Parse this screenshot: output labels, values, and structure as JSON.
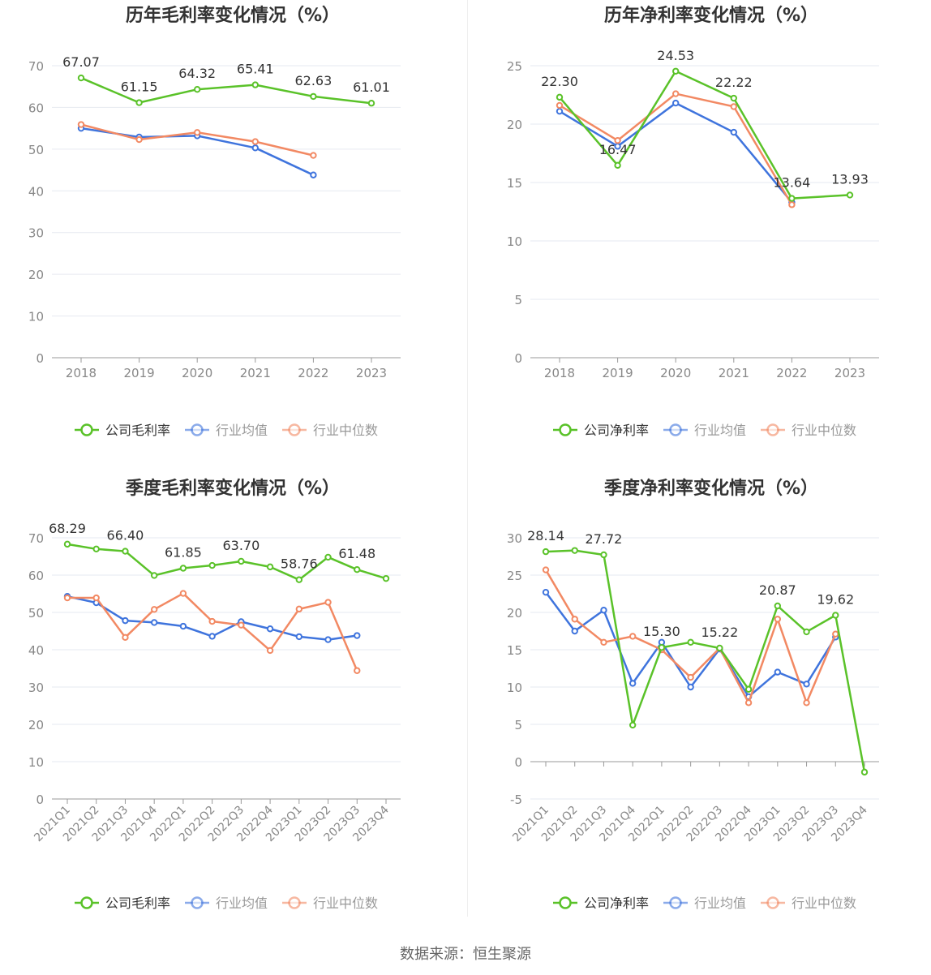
{
  "footer": "数据来源：恒生聚源",
  "colors": {
    "company": "#5ac229",
    "avg": "#3f74dd",
    "median": "#f28963"
  },
  "chart_data": [
    {
      "type": "line",
      "title": "历年毛利率变化情况（%）",
      "categories": [
        "2018",
        "2019",
        "2020",
        "2021",
        "2022",
        "2023"
      ],
      "ylim": [
        0,
        70
      ],
      "yticks": [
        0,
        10,
        20,
        30,
        40,
        50,
        60,
        70
      ],
      "grid": true,
      "legend_position": "bottom",
      "series": [
        {
          "name": "公司毛利率",
          "role": "company",
          "values": [
            67.07,
            61.15,
            64.32,
            65.41,
            62.63,
            61.01
          ],
          "labels": [
            "67.07",
            "61.15",
            "64.32",
            "65.41",
            "62.63",
            "61.01"
          ]
        },
        {
          "name": "行业均值",
          "role": "avg",
          "values": [
            55.0,
            52.9,
            53.2,
            50.3,
            43.8,
            null
          ]
        },
        {
          "name": "行业中位数",
          "role": "median",
          "values": [
            55.9,
            52.3,
            54.0,
            51.8,
            48.5,
            null
          ]
        }
      ]
    },
    {
      "type": "line",
      "title": "历年净利率变化情况（%）",
      "categories": [
        "2018",
        "2019",
        "2020",
        "2021",
        "2022",
        "2023"
      ],
      "ylim": [
        0,
        25
      ],
      "yticks": [
        0,
        5,
        10,
        15,
        20,
        25
      ],
      "grid": true,
      "legend_position": "bottom",
      "series": [
        {
          "name": "公司净利率",
          "role": "company",
          "values": [
            22.3,
            16.47,
            24.53,
            22.22,
            13.64,
            13.93
          ],
          "labels": [
            "22.30",
            "16.47",
            "24.53",
            "22.22",
            "13.64",
            "13.93"
          ]
        },
        {
          "name": "行业均值",
          "role": "avg",
          "values": [
            21.1,
            18.1,
            21.8,
            19.3,
            13.3,
            null
          ]
        },
        {
          "name": "行业中位数",
          "role": "median",
          "values": [
            21.6,
            18.6,
            22.6,
            21.5,
            13.1,
            null
          ]
        }
      ]
    },
    {
      "type": "line",
      "title": "季度毛利率变化情况（%）",
      "categories": [
        "2021Q1",
        "2021Q2",
        "2021Q3",
        "2021Q4",
        "2022Q1",
        "2022Q2",
        "2022Q3",
        "2022Q4",
        "2023Q1",
        "2023Q2",
        "2023Q3",
        "2023Q4"
      ],
      "ylim": [
        0,
        70
      ],
      "yticks": [
        0,
        10,
        20,
        30,
        40,
        50,
        60,
        70
      ],
      "grid": true,
      "legend_position": "bottom",
      "series": [
        {
          "name": "公司毛利率",
          "role": "company",
          "values": [
            68.29,
            67.0,
            66.4,
            59.9,
            61.85,
            62.6,
            63.7,
            62.2,
            58.76,
            64.8,
            61.48,
            59.1
          ],
          "labels": [
            "68.29",
            "",
            "66.40",
            "",
            "61.85",
            "",
            "63.70",
            "",
            "58.76",
            "",
            "61.48",
            ""
          ]
        },
        {
          "name": "行业均值",
          "role": "avg",
          "values": [
            54.3,
            52.6,
            47.8,
            47.3,
            46.3,
            43.6,
            47.5,
            45.6,
            43.5,
            42.7,
            43.8,
            null
          ]
        },
        {
          "name": "行业中位数",
          "role": "median",
          "values": [
            53.9,
            53.9,
            43.3,
            50.8,
            55.1,
            47.6,
            46.6,
            39.8,
            50.9,
            52.7,
            34.4,
            null
          ]
        }
      ]
    },
    {
      "type": "line",
      "title": "季度净利率变化情况（%）",
      "categories": [
        "2021Q1",
        "2021Q2",
        "2021Q3",
        "2021Q4",
        "2022Q1",
        "2022Q2",
        "2022Q3",
        "2022Q4",
        "2023Q1",
        "2023Q2",
        "2023Q3",
        "2023Q4"
      ],
      "ylim": [
        -5,
        30
      ],
      "yticks": [
        -5,
        0,
        5,
        10,
        15,
        20,
        25,
        30
      ],
      "grid": true,
      "legend_position": "bottom",
      "series": [
        {
          "name": "公司净利率",
          "role": "company",
          "values": [
            28.14,
            28.3,
            27.72,
            4.9,
            15.3,
            16.0,
            15.22,
            9.7,
            20.87,
            17.4,
            19.62,
            -1.4
          ],
          "labels": [
            "28.14",
            "",
            "27.72",
            "",
            "15.30",
            "",
            "15.22",
            "",
            "20.87",
            "",
            "19.62",
            ""
          ]
        },
        {
          "name": "行业均值",
          "role": "avg",
          "values": [
            22.7,
            17.5,
            20.3,
            10.5,
            16.0,
            10.0,
            15.1,
            8.7,
            12.0,
            10.4,
            16.7,
            null
          ]
        },
        {
          "name": "行业中位数",
          "role": "median",
          "values": [
            25.7,
            19.1,
            16.0,
            16.8,
            15.0,
            11.3,
            15.2,
            7.9,
            19.1,
            7.9,
            17.1,
            null
          ]
        }
      ]
    }
  ]
}
